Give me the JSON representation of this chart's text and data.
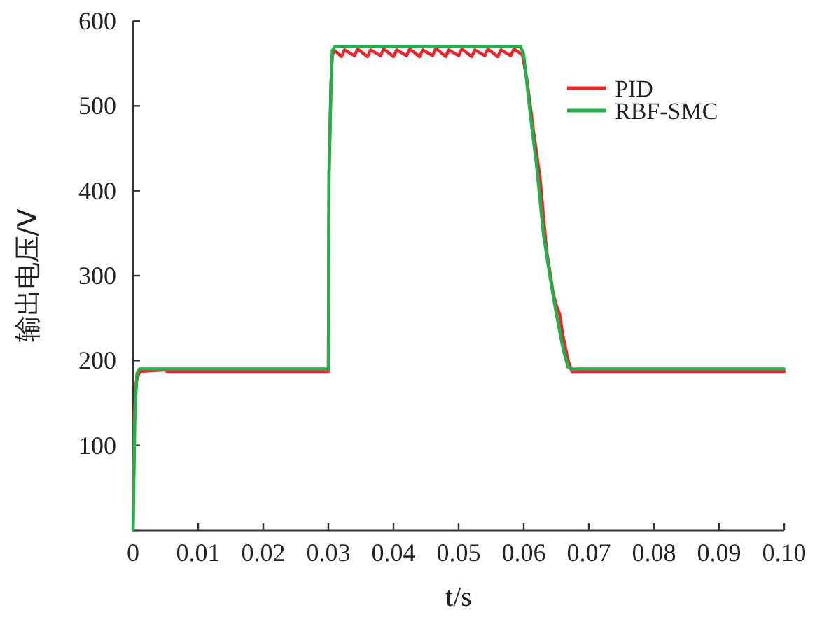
{
  "chart_data": {
    "type": "line",
    "xlabel": "t/s",
    "ylabel": "输出电压/V",
    "xlim": [
      0,
      0.1
    ],
    "xticks": [
      0,
      0.01,
      0.02,
      0.03,
      0.04,
      0.05,
      0.06,
      0.07,
      0.08,
      0.09,
      {
        "value": 0.1,
        "label": "0.10"
      }
    ],
    "ylim": [
      0,
      600
    ],
    "yticks": [
      {
        "value": 0,
        "label": null
      },
      100,
      200,
      300,
      400,
      500,
      600
    ],
    "grid": false,
    "legend": "top right",
    "marker": "none",
    "line_style": "solid",
    "series": [
      {
        "name": "PID",
        "color": "#e8262b",
        "x": [
          0,
          0.0002,
          0.0005,
          0.001,
          0.005,
          0.0052,
          0.03,
          0.0301,
          0.0304,
          0.0306,
          0.031,
          0.032,
          0.0325,
          0.034,
          0.0345,
          0.036,
          0.0365,
          0.038,
          0.0385,
          0.04,
          0.0405,
          0.042,
          0.0425,
          0.044,
          0.0445,
          0.046,
          0.0465,
          0.048,
          0.0485,
          0.05,
          0.0505,
          0.052,
          0.0525,
          0.054,
          0.0545,
          0.056,
          0.0565,
          0.058,
          0.0585,
          0.0598,
          0.0605,
          0.0615,
          0.0625,
          0.0635,
          0.0645,
          0.065,
          0.0655,
          0.066,
          0.0668,
          0.0674,
          0.07,
          0.1
        ],
        "values": [
          0,
          135,
          175,
          187,
          189,
          187,
          187,
          420,
          525,
          560,
          565,
          558,
          566,
          559,
          567,
          558,
          566,
          559,
          567,
          558,
          566,
          559,
          567,
          558,
          566,
          559,
          568,
          558,
          566,
          559,
          567,
          558,
          566,
          559,
          567,
          558,
          566,
          559,
          567,
          560,
          530,
          470,
          415,
          330,
          280,
          265,
          255,
          230,
          200,
          187,
          187,
          187
        ]
      },
      {
        "name": "RBF-SMC",
        "color": "#1db24a",
        "x": [
          0,
          0.0003,
          0.0006,
          0.001,
          0.03,
          0.0301,
          0.0304,
          0.0306,
          0.031,
          0.0595,
          0.06,
          0.061,
          0.062,
          0.063,
          0.064,
          0.065,
          0.066,
          0.0668,
          0.0672,
          0.1
        ],
        "values": [
          0,
          140,
          185,
          190,
          190,
          420,
          525,
          565,
          570,
          570,
          560,
          490,
          427,
          350,
          300,
          255,
          215,
          192,
          190,
          190
        ]
      }
    ]
  }
}
